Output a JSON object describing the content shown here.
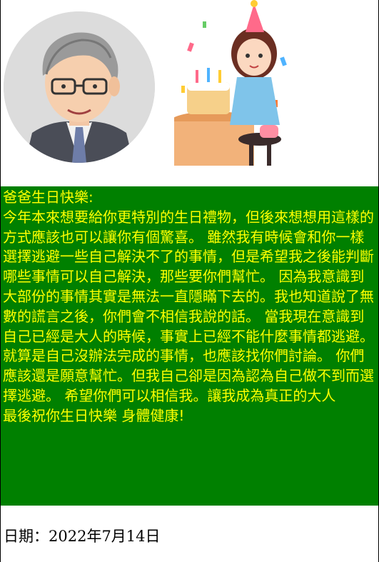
{
  "images": {
    "avatar_icon": "caricature-portrait-icon",
    "party_icon": "birthday-girl-cake-icon"
  },
  "message": {
    "greeting": "爸爸生日快樂:",
    "body": "今年本來想要給你更特別的生日禮物，但後來想想用這樣的方式應該也可以讓你有個驚喜。 雖然我有時候會和你一樣選擇逃避一些自己解決不了的事情，但是希望我之後能判斷哪些事情可以自己解決，那些要你們幫忙。 因為我意識到大部份的事情其實是無法一直隱瞞下去的。我也知道說了無數的謊言之後，你們會不相信我說的話。 當我現在意識到自己已經是大人的時候，事實上已經不能什麼事情都逃避。就算是自己沒辦法完成的事情，也應該找你們討論。 你們應該還是願意幫忙。但我自己卻是因為認為自己做不到而選擇逃避。 希望你們可以相信我。讓我成為真正的大人",
    "closing": "最後祝你生日快樂 身體健康!"
  },
  "date": {
    "text": "日期：2022年7月14日"
  },
  "colors": {
    "message_bg": "#008000",
    "message_text": "#ffff00"
  }
}
